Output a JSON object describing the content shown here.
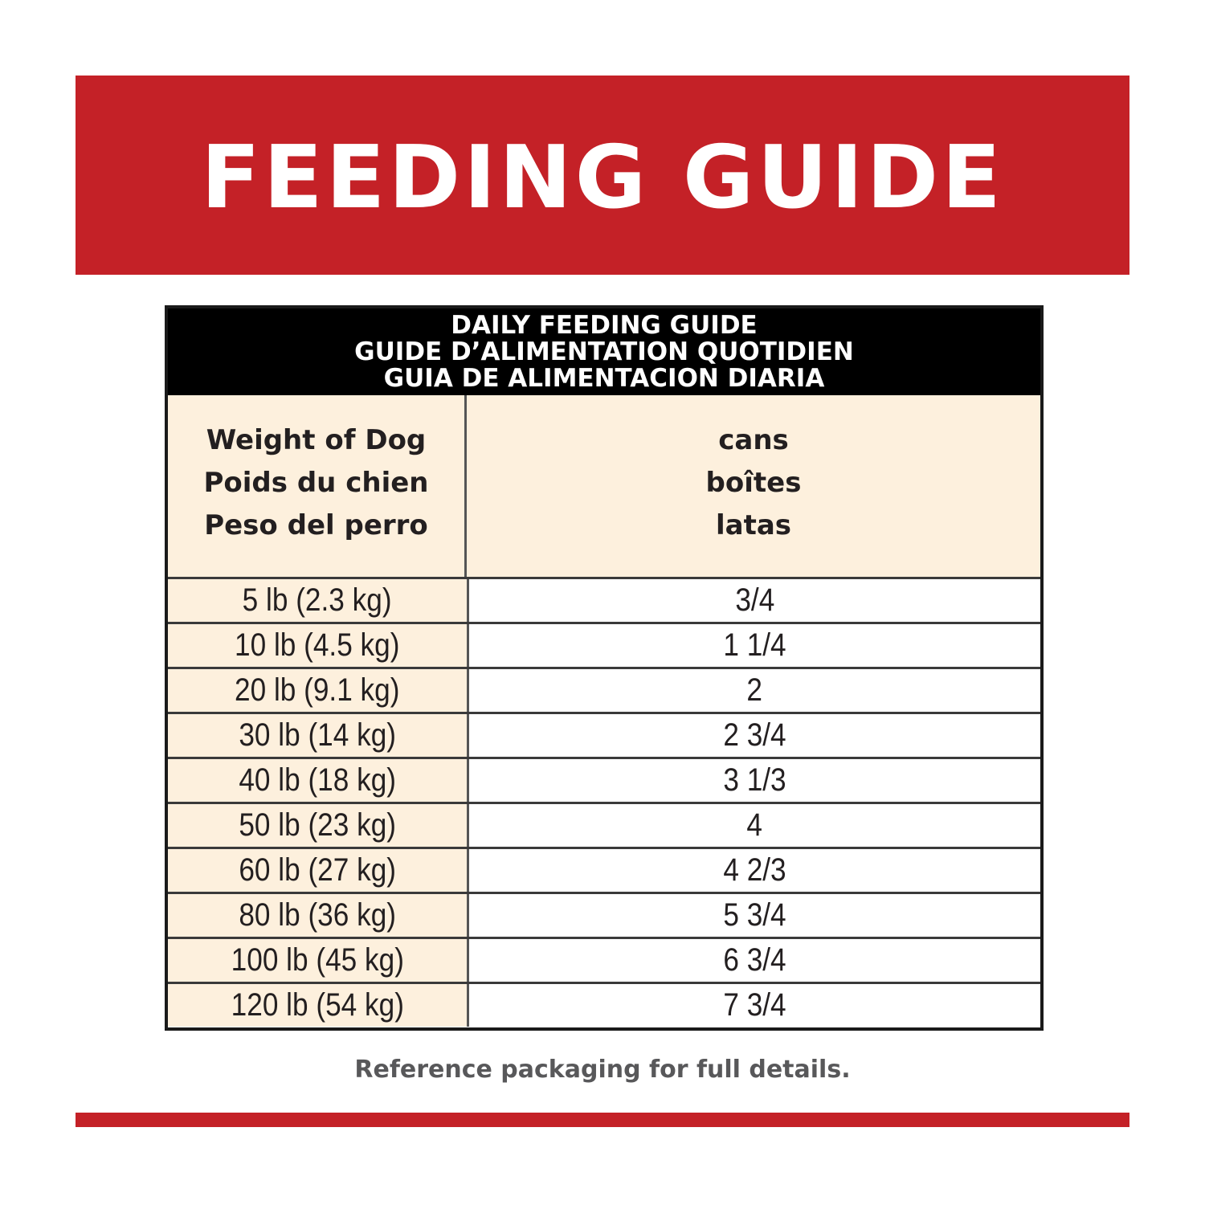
{
  "banner": {
    "title": "FEEDING GUIDE"
  },
  "table": {
    "header_lines": [
      "DAILY FEEDING GUIDE",
      "GUIDE D’ALIMENTATION QUOTIDIEN",
      "GUIA DE ALIMENTACION DIARIA"
    ],
    "weight_heading": [
      "Weight of Dog",
      "Poids du chien",
      "Peso del perro"
    ],
    "amount_heading": [
      "cans",
      "boîtes",
      "latas"
    ],
    "rows": [
      {
        "weight": "5 lb (2.3 kg)",
        "amount": "3/4"
      },
      {
        "weight": "10 lb (4.5 kg)",
        "amount": "1 1/4"
      },
      {
        "weight": "20 lb (9.1 kg)",
        "amount": "2"
      },
      {
        "weight": "30 lb (14 kg)",
        "amount": "2 3/4"
      },
      {
        "weight": "40 lb (18 kg)",
        "amount": "3 1/3"
      },
      {
        "weight": "50 lb (23 kg)",
        "amount": "4"
      },
      {
        "weight": "60 lb (27 kg)",
        "amount": "4 2/3"
      },
      {
        "weight": "80 lb (36 kg)",
        "amount": "5 3/4"
      },
      {
        "weight": "100 lb (45 kg)",
        "amount": "6 3/4"
      },
      {
        "weight": "120 lb (54 kg)",
        "amount": "7 3/4"
      }
    ]
  },
  "footnote": "Reference packaging for full details.",
  "colors": {
    "brand_red": "#c42127",
    "cream": "#fdf0dd",
    "header_black": "#000000",
    "footnote_gray": "#58585a"
  }
}
